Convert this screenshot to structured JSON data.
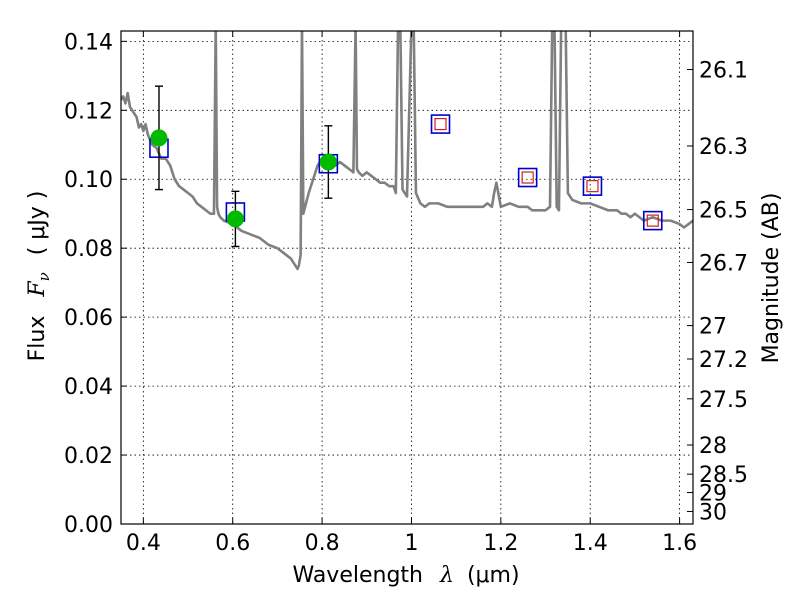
{
  "chart_data": {
    "type": "line",
    "xlabel_prefix": "Wavelength",
    "xlabel_symbol": "λ",
    "xlabel_unit": "(μm)",
    "ylabel_prefix": "Flux",
    "ylabel_symbol": "F",
    "ylabel_subscript": "ν",
    "ylabel_unit": "( μJy )",
    "y2label": "Magnitude (AB)",
    "xlim": [
      0.35,
      1.63
    ],
    "ylim": [
      0.0,
      0.143
    ],
    "grid": true,
    "x_ticks": [
      {
        "value": 0.4,
        "label": "0.4"
      },
      {
        "value": 0.6,
        "label": "0.6"
      },
      {
        "value": 0.8,
        "label": "0.8"
      },
      {
        "value": 1.0,
        "label": "1"
      },
      {
        "value": 1.2,
        "label": "1.2"
      },
      {
        "value": 1.4,
        "label": "1.4"
      },
      {
        "value": 1.6,
        "label": "1.6"
      }
    ],
    "y_ticks": [
      {
        "value": 0.0,
        "label": "0.00"
      },
      {
        "value": 0.02,
        "label": "0.02"
      },
      {
        "value": 0.04,
        "label": "0.04"
      },
      {
        "value": 0.06,
        "label": "0.06"
      },
      {
        "value": 0.08,
        "label": "0.08"
      },
      {
        "value": 0.1,
        "label": "0.10"
      },
      {
        "value": 0.12,
        "label": "0.12"
      },
      {
        "value": 0.14,
        "label": "0.14"
      }
    ],
    "y2_ticks": [
      {
        "mag": 26.1,
        "label": "26.1"
      },
      {
        "mag": 26.3,
        "label": "26.3"
      },
      {
        "mag": 26.5,
        "label": "26.5"
      },
      {
        "mag": 26.7,
        "label": "26.7"
      },
      {
        "mag": 27.0,
        "label": "27"
      },
      {
        "mag": 27.2,
        "label": "27.2"
      },
      {
        "mag": 27.5,
        "label": "27.5"
      },
      {
        "mag": 28.0,
        "label": "28"
      },
      {
        "mag": 28.5,
        "label": "28.5"
      },
      {
        "mag": 29.0,
        "label": "29"
      },
      {
        "mag": 30.0,
        "label": "30"
      }
    ],
    "colors": {
      "spectrum": "#808080",
      "observed": "#00bb00",
      "model_band": "#0000cc",
      "model_point": "#cc2222",
      "errorbar": "#000000"
    },
    "series": [
      {
        "name": "model spectrum",
        "kind": "line",
        "x": [
          0.35,
          0.355,
          0.36,
          0.365,
          0.37,
          0.375,
          0.38,
          0.385,
          0.39,
          0.395,
          0.4,
          0.405,
          0.41,
          0.42,
          0.43,
          0.44,
          0.45,
          0.46,
          0.47,
          0.48,
          0.49,
          0.5,
          0.51,
          0.52,
          0.53,
          0.54,
          0.55,
          0.558,
          0.562,
          0.565,
          0.568,
          0.572,
          0.58,
          0.6,
          0.62,
          0.64,
          0.66,
          0.68,
          0.7,
          0.72,
          0.73,
          0.74,
          0.745,
          0.748,
          0.752,
          0.755,
          0.758,
          0.762,
          0.766,
          0.77,
          0.775,
          0.78,
          0.79,
          0.8,
          0.81,
          0.82,
          0.83,
          0.84,
          0.85,
          0.86,
          0.87,
          0.875,
          0.878,
          0.882,
          0.89,
          0.9,
          0.91,
          0.92,
          0.93,
          0.94,
          0.95,
          0.96,
          0.965,
          0.97,
          0.975,
          0.98,
          0.985,
          0.99,
          1.0,
          1.005,
          1.01,
          1.02,
          1.03,
          1.04,
          1.06,
          1.08,
          1.1,
          1.12,
          1.14,
          1.16,
          1.17,
          1.18,
          1.185,
          1.19,
          1.2,
          1.22,
          1.24,
          1.26,
          1.27,
          1.28,
          1.29,
          1.3,
          1.31,
          1.315,
          1.32,
          1.325,
          1.33,
          1.335,
          1.34,
          1.345,
          1.35,
          1.36,
          1.38,
          1.4,
          1.42,
          1.44,
          1.46,
          1.47,
          1.48,
          1.49,
          1.5,
          1.52,
          1.54,
          1.56,
          1.58,
          1.6,
          1.61,
          1.62,
          1.63
        ],
        "y": [
          0.123,
          0.124,
          0.122,
          0.125,
          0.121,
          0.12,
          0.119,
          0.118,
          0.115,
          0.116,
          0.114,
          0.116,
          0.113,
          0.11,
          0.109,
          0.106,
          0.106,
          0.104,
          0.1,
          0.098,
          0.097,
          0.096,
          0.095,
          0.093,
          0.092,
          0.091,
          0.09,
          0.09,
          0.145,
          0.092,
          0.09,
          0.089,
          0.088,
          0.087,
          0.085,
          0.084,
          0.083,
          0.081,
          0.08,
          0.078,
          0.077,
          0.075,
          0.074,
          0.075,
          0.078,
          0.145,
          0.09,
          0.092,
          0.094,
          0.096,
          0.098,
          0.1,
          0.104,
          0.106,
          0.107,
          0.106,
          0.104,
          0.105,
          0.104,
          0.103,
          0.102,
          0.145,
          0.103,
          0.102,
          0.101,
          0.102,
          0.101,
          0.1,
          0.099,
          0.099,
          0.098,
          0.098,
          0.096,
          0.145,
          0.145,
          0.097,
          0.096,
          0.095,
          0.145,
          0.145,
          0.096,
          0.093,
          0.092,
          0.093,
          0.093,
          0.092,
          0.092,
          0.092,
          0.092,
          0.092,
          0.093,
          0.092,
          0.096,
          0.099,
          0.092,
          0.093,
          0.092,
          0.092,
          0.091,
          0.091,
          0.091,
          0.091,
          0.092,
          0.145,
          0.145,
          0.092,
          0.091,
          0.145,
          0.145,
          0.145,
          0.096,
          0.094,
          0.093,
          0.093,
          0.092,
          0.091,
          0.091,
          0.09,
          0.09,
          0.089,
          0.09,
          0.088,
          0.089,
          0.088,
          0.088,
          0.087,
          0.086,
          0.087,
          0.088
        ]
      },
      {
        "name": "observed photometry",
        "kind": "points-with-errors",
        "x": [
          0.435,
          0.606,
          0.814
        ],
        "y": [
          0.112,
          0.0885,
          0.105
        ],
        "yerr": [
          0.015,
          0.008,
          0.0105
        ]
      },
      {
        "name": "model band flux (boxes)",
        "kind": "squares",
        "x": [
          0.435,
          0.606,
          0.814,
          1.065,
          1.26,
          1.405,
          1.54
        ],
        "y": [
          0.109,
          0.0905,
          0.1045,
          0.116,
          0.1005,
          0.098,
          0.088
        ]
      },
      {
        "name": "model point (small red squares)",
        "kind": "small-squares",
        "x": [
          1.065,
          1.26,
          1.405,
          1.54
        ],
        "y": [
          0.116,
          0.1005,
          0.098,
          0.088
        ]
      }
    ]
  }
}
